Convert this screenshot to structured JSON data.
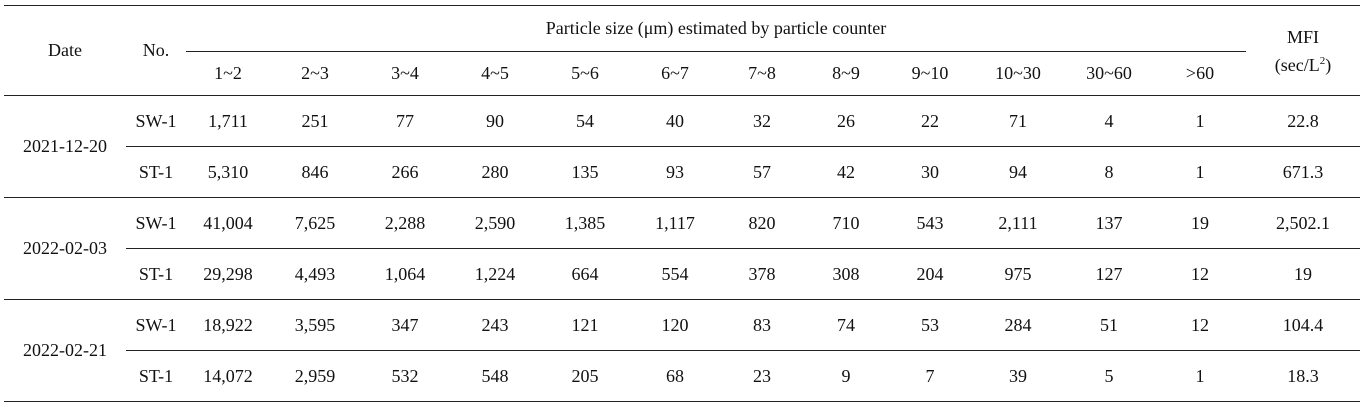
{
  "headers": {
    "date": "Date",
    "no": "No.",
    "particle_group": "Particle size (μm) estimated by particle counter",
    "mfi_line1": "MFI",
    "mfi_line2_prefix": "(sec/L",
    "mfi_line2_sup": "2",
    "mfi_line2_suffix": ")",
    "size_bins": [
      "1~2",
      "2~3",
      "3~4",
      "4~5",
      "5~6",
      "6~7",
      "7~8",
      "8~9",
      "9~10",
      "10~30",
      "30~60",
      ">60"
    ]
  },
  "groups": [
    {
      "date": "2021-12-20",
      "rows": [
        {
          "no": "SW-1",
          "values": [
            "1,711",
            "251",
            "77",
            "90",
            "54",
            "40",
            "32",
            "26",
            "22",
            "71",
            "4",
            "1"
          ],
          "mfi": "22.8"
        },
        {
          "no": "ST-1",
          "values": [
            "5,310",
            "846",
            "266",
            "280",
            "135",
            "93",
            "57",
            "42",
            "30",
            "94",
            "8",
            "1"
          ],
          "mfi": "671.3"
        }
      ]
    },
    {
      "date": "2022-02-03",
      "rows": [
        {
          "no": "SW-1",
          "values": [
            "41,004",
            "7,625",
            "2,288",
            "2,590",
            "1,385",
            "1,117",
            "820",
            "710",
            "543",
            "2,111",
            "137",
            "19"
          ],
          "mfi": "2,502.1"
        },
        {
          "no": "ST-1",
          "values": [
            "29,298",
            "4,493",
            "1,064",
            "1,224",
            "664",
            "554",
            "378",
            "308",
            "204",
            "975",
            "127",
            "12"
          ],
          "mfi": "19"
        }
      ]
    },
    {
      "date": "2022-02-21",
      "rows": [
        {
          "no": "SW-1",
          "values": [
            "18,922",
            "3,595",
            "347",
            "243",
            "121",
            "120",
            "83",
            "74",
            "53",
            "284",
            "51",
            "12"
          ],
          "mfi": "104.4"
        },
        {
          "no": "ST-1",
          "values": [
            "14,072",
            "2,959",
            "532",
            "548",
            "205",
            "68",
            "23",
            "9",
            "7",
            "39",
            "5",
            "1"
          ],
          "mfi": "18.3"
        }
      ]
    }
  ]
}
